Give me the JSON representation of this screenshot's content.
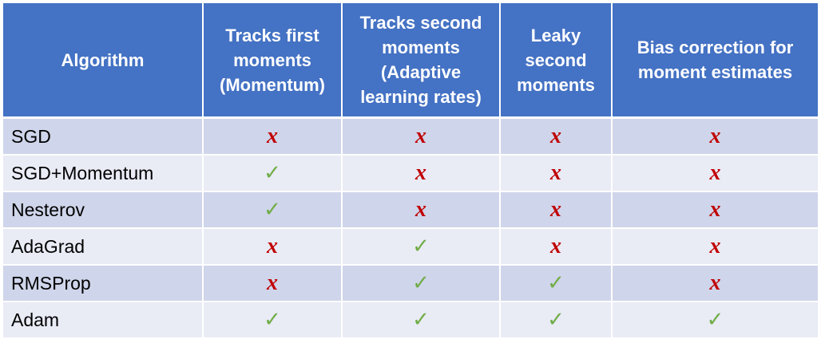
{
  "table": {
    "headers": [
      "Algorithm",
      "Tracks first moments (Momentum)",
      "Tracks second moments (Adaptive learning rates)",
      "Leaky second moments",
      "Bias correction for moment estimates"
    ],
    "rows": [
      {
        "name": "SGD",
        "cells": [
          "✗",
          "✗",
          "✗",
          "✗"
        ]
      },
      {
        "name": "SGD+Momentum",
        "cells": [
          "✓",
          "✗",
          "✗",
          "✗"
        ]
      },
      {
        "name": "Nesterov",
        "cells": [
          "✓",
          "✗",
          "✗",
          "✗"
        ]
      },
      {
        "name": "AdaGrad",
        "cells": [
          "✗",
          "✓",
          "✗",
          "✗"
        ]
      },
      {
        "name": "RMSProp",
        "cells": [
          "✗",
          "✓",
          "✓",
          "✗"
        ]
      },
      {
        "name": "Adam",
        "cells": [
          "✓",
          "✓",
          "✓",
          "✓"
        ]
      }
    ]
  },
  "symbols": {
    "no": "x",
    "yes": "✓"
  },
  "colors": {
    "header_bg": "#4472c4",
    "row_odd_bg": "#cfd5ea",
    "row_even_bg": "#e9ebf5",
    "cross": "#c00000",
    "check": "#70ad47"
  }
}
